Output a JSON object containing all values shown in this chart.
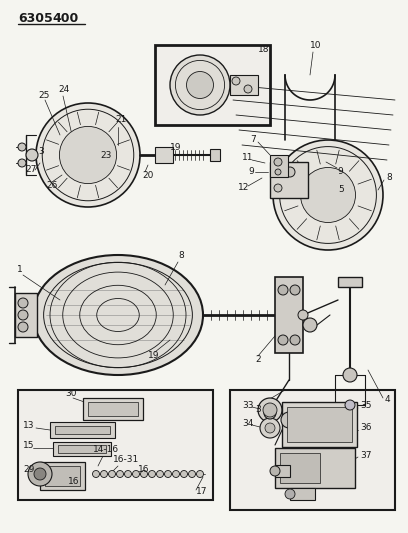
{
  "bg_color": "#f5f5f0",
  "line_color": "#1a1a1a",
  "title": "6305  400",
  "figsize": [
    4.08,
    5.33
  ],
  "dpi": 100
}
